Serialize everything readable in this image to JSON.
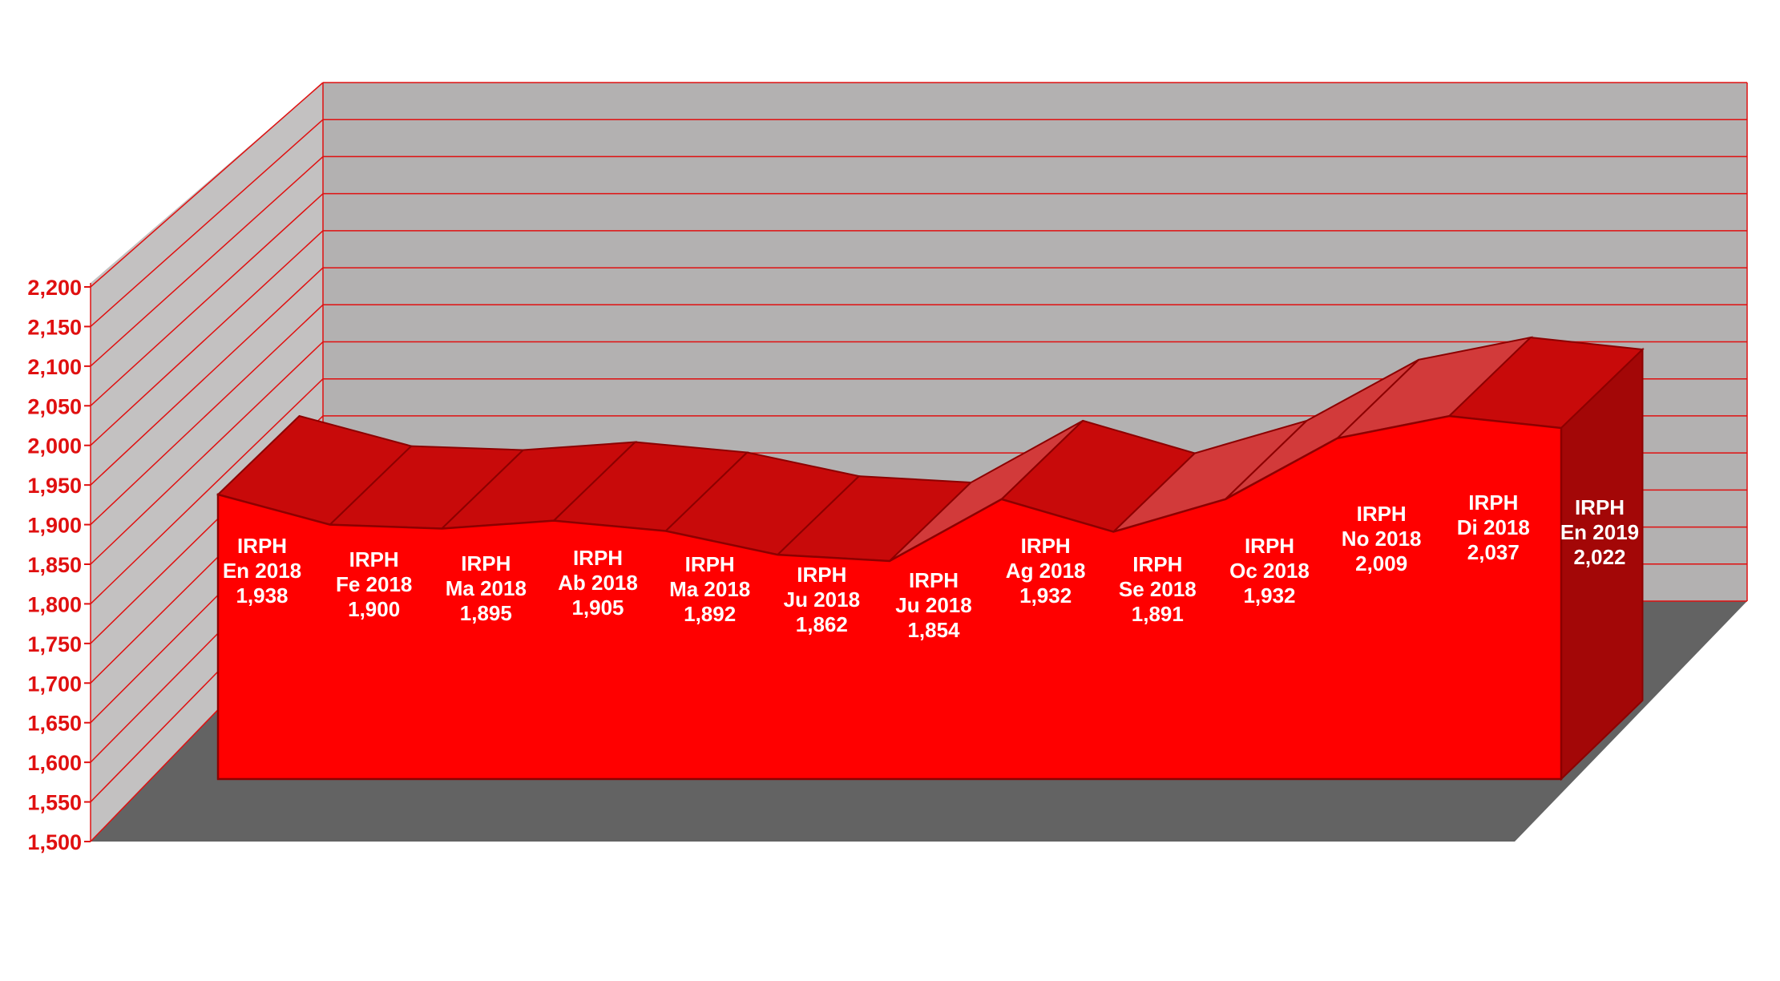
{
  "chart_data": {
    "type": "area",
    "style": "3d",
    "title": "",
    "xlabel": "",
    "ylabel": "",
    "ylim": [
      1500,
      2200
    ],
    "yticks": [
      1500,
      1550,
      1600,
      1650,
      1700,
      1750,
      1800,
      1850,
      1900,
      1950,
      2000,
      2050,
      2100,
      2150,
      2200
    ],
    "ytick_labels": [
      "1,500",
      "1,550",
      "1,600",
      "1,650",
      "1,700",
      "1,750",
      "1,800",
      "1,850",
      "1,900",
      "1,950",
      "2,000",
      "2,050",
      "2,100",
      "2,150",
      "2,200"
    ],
    "grid": true,
    "legend": "none",
    "categories": [
      "En 2018",
      "Fe 2018",
      "Ma 2018",
      "Ab 2018",
      "Ma 2018",
      "Ju 2018",
      "Ju 2018",
      "Ag 2018",
      "Se 2018",
      "Oc 2018",
      "No 2018",
      "Di 2018",
      "En 2019"
    ],
    "series": [
      {
        "values": [
          1.938,
          1.9,
          1.895,
          1.905,
          1.892,
          1.862,
          1.854,
          1.932,
          1.891,
          1.932,
          2.009,
          2.037,
          2.022
        ]
      }
    ],
    "data_labels": [
      {
        "line1": "IRPH",
        "line2": "En 2018",
        "line3": "1,938"
      },
      {
        "line1": "IRPH",
        "line2": "Fe 2018",
        "line3": "1,900"
      },
      {
        "line1": "IRPH",
        "line2": "Ma 2018",
        "line3": "1,895"
      },
      {
        "line1": "IRPH",
        "line2": "Ab 2018",
        "line3": "1,905"
      },
      {
        "line1": "IRPH",
        "line2": "Ma 2018",
        "line3": "1,892"
      },
      {
        "line1": "IRPH",
        "line2": "Ju 2018",
        "line3": "1,862"
      },
      {
        "line1": "IRPH",
        "line2": "Ju 2018",
        "line3": "1,854"
      },
      {
        "line1": "IRPH",
        "line2": "Ag 2018",
        "line3": "1,932"
      },
      {
        "line1": "IRPH",
        "line2": "Se 2018",
        "line3": "1,891"
      },
      {
        "line1": "IRPH",
        "line2": "Oc 2018",
        "line3": "1,932"
      },
      {
        "line1": "IRPH",
        "line2": "No 2018",
        "line3": "2,009"
      },
      {
        "line1": "IRPH",
        "line2": "Di 2018",
        "line3": "2,037"
      },
      {
        "line1": "IRPH",
        "line2": "En 2019",
        "line3": "2,022"
      }
    ],
    "colors": {
      "area_front": "#ff0000",
      "area_top": "#c80a0a",
      "area_side": "#a30707",
      "area_outline": "#8c0000",
      "back_wall": "#b3b1b1",
      "side_wall": "#c3c1c1",
      "floor": "#636363",
      "gridline": "#e01010",
      "axis_text": "#e01010",
      "label_text": "#ffffff"
    }
  }
}
